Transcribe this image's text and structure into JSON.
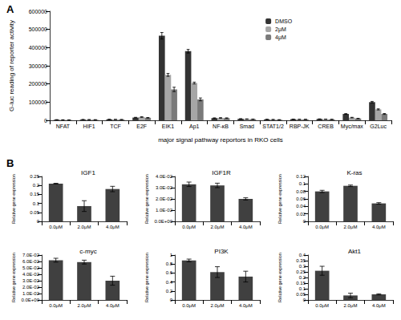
{
  "chart_data": [
    {
      "type": "bar",
      "panel_label": "A",
      "y_label": "G-luc reading of reporter activity",
      "x_label": "major signal pathway reportors in RKO cells",
      "categories": [
        "NFAT",
        "HIF1",
        "TCF",
        "E2F",
        "EIK1",
        "Ap1",
        "NF-κB",
        "Smad",
        "STAT1/2",
        "RBP-JK",
        "CREB",
        "Myc/max",
        "G2Luc"
      ],
      "series": [
        {
          "name": "DMSO",
          "color": "#333333",
          "values": [
            3000,
            4000,
            5000,
            15000,
            465000,
            380000,
            12000,
            8000,
            5000,
            6000,
            7000,
            35000,
            100000
          ],
          "errors": [
            500,
            500,
            500,
            1500,
            18000,
            10000,
            1500,
            1000,
            500,
            500,
            800,
            2000,
            4000
          ]
        },
        {
          "name": "2μM",
          "color": "#a6a6a6",
          "values": [
            2500,
            3500,
            4500,
            18000,
            250000,
            205000,
            13000,
            7000,
            4000,
            5000,
            6000,
            15000,
            60000
          ],
          "errors": [
            500,
            500,
            500,
            1500,
            8000,
            5000,
            1500,
            800,
            500,
            500,
            600,
            1500,
            3000
          ]
        },
        {
          "name": "4μM",
          "color": "#7a7a7a",
          "values": [
            2000,
            3000,
            4000,
            14000,
            170000,
            115000,
            12000,
            6000,
            3000,
            5000,
            5000,
            10000,
            35000
          ],
          "errors": [
            500,
            500,
            500,
            1500,
            12000,
            8000,
            1500,
            800,
            500,
            500,
            600,
            1000,
            2500
          ]
        }
      ],
      "ylim": [
        0,
        600000
      ],
      "yticks": [
        0,
        100000,
        200000,
        300000,
        400000,
        500000,
        600000
      ],
      "legend": "upper right",
      "grid": false
    },
    {
      "type": "bar",
      "panel_label": "B",
      "title": "IGF1",
      "y_label": "Relative gene expression",
      "categories": [
        "0.0μM",
        "2.0μM",
        "4.0μM"
      ],
      "color": "#404040",
      "values": [
        0.21,
        0.085,
        0.18
      ],
      "errors": [
        0.002,
        0.03,
        0.015
      ],
      "ylim": [
        0,
        0.25
      ],
      "yticks": [
        0,
        0.05,
        0.1,
        0.15,
        0.2,
        0.25
      ],
      "grid": false
    },
    {
      "type": "bar",
      "title": "IGF1R",
      "y_label": "Relative gene expression",
      "categories": [
        "0.0μM",
        "2.0μM",
        "4.0μM"
      ],
      "color": "#404040",
      "values": [
        0.033,
        0.032,
        0.02
      ],
      "errors": [
        0.002,
        0.002,
        0.001
      ],
      "ylim": [
        0,
        0.04
      ],
      "yticks": [
        {
          "value": 0,
          "label": "0.0E+00"
        },
        {
          "value": 0.01,
          "label": "1.0E-02"
        },
        {
          "value": 0.02,
          "label": "2.0E-02"
        },
        {
          "value": 0.03,
          "label": "3.0E-02"
        },
        {
          "value": 0.04,
          "label": "4.0E-02"
        }
      ],
      "grid": false
    },
    {
      "type": "bar",
      "title": "K-ras",
      "y_label": "Relative gene expression",
      "categories": [
        "0.0μM",
        "2.0μM",
        "4.0μM"
      ],
      "color": "#404040",
      "values": [
        0.08,
        0.095,
        0.048
      ],
      "errors": [
        0.003,
        0.002,
        0.002
      ],
      "ylim": [
        0,
        0.12
      ],
      "yticks": [
        0,
        0.02,
        0.04,
        0.06,
        0.08,
        0.1,
        0.12
      ],
      "grid": false
    },
    {
      "type": "bar",
      "title": "c-myc",
      "y_label": "Relative gene expression",
      "categories": [
        "0.0μM",
        "2.0μM",
        "4.0μM"
      ],
      "color": "#404040",
      "values": [
        0.062,
        0.059,
        0.03
      ],
      "errors": [
        0.003,
        0.003,
        0.007
      ],
      "ylim": [
        0,
        0.07
      ],
      "yticks": [
        {
          "value": 0,
          "label": "0.0E+00"
        },
        {
          "value": 0.01,
          "label": "1.0E-02"
        },
        {
          "value": 0.02,
          "label": "2.0E-02"
        },
        {
          "value": 0.03,
          "label": "3.0E-02"
        },
        {
          "value": 0.04,
          "label": "4.0E-02"
        },
        {
          "value": 0.05,
          "label": "5.0E-02"
        },
        {
          "value": 0.06,
          "label": "6.0E-02"
        },
        {
          "value": 0.07,
          "label": "7.0E-02"
        }
      ],
      "grid": false
    },
    {
      "type": "bar",
      "title": "PI3K",
      "y_label": "Relative gene expression",
      "categories": [
        "0.0μM",
        "2.0μM",
        "4.0μM"
      ],
      "color": "#404040",
      "values": [
        0.88,
        0.62,
        0.52
      ],
      "errors": [
        0.03,
        0.12,
        0.12
      ],
      "ylim": [
        0,
        1
      ],
      "yticks": [
        0,
        0.2,
        0.4,
        0.6,
        0.8,
        1
      ],
      "grid": false
    },
    {
      "type": "bar",
      "title": "Akt1",
      "y_label": "Relative gene expression",
      "categories": [
        "0.0μM",
        "2.0μM",
        "4.0μM"
      ],
      "color": "#404040",
      "values": [
        0.26,
        0.04,
        0.05
      ],
      "errors": [
        0.04,
        0.02,
        0.005
      ],
      "ylim": [
        0,
        0.4
      ],
      "yticks": [
        0,
        0.05,
        0.1,
        0.15,
        0.2,
        0.25,
        0.3,
        0.35,
        0.4
      ],
      "grid": false
    }
  ]
}
